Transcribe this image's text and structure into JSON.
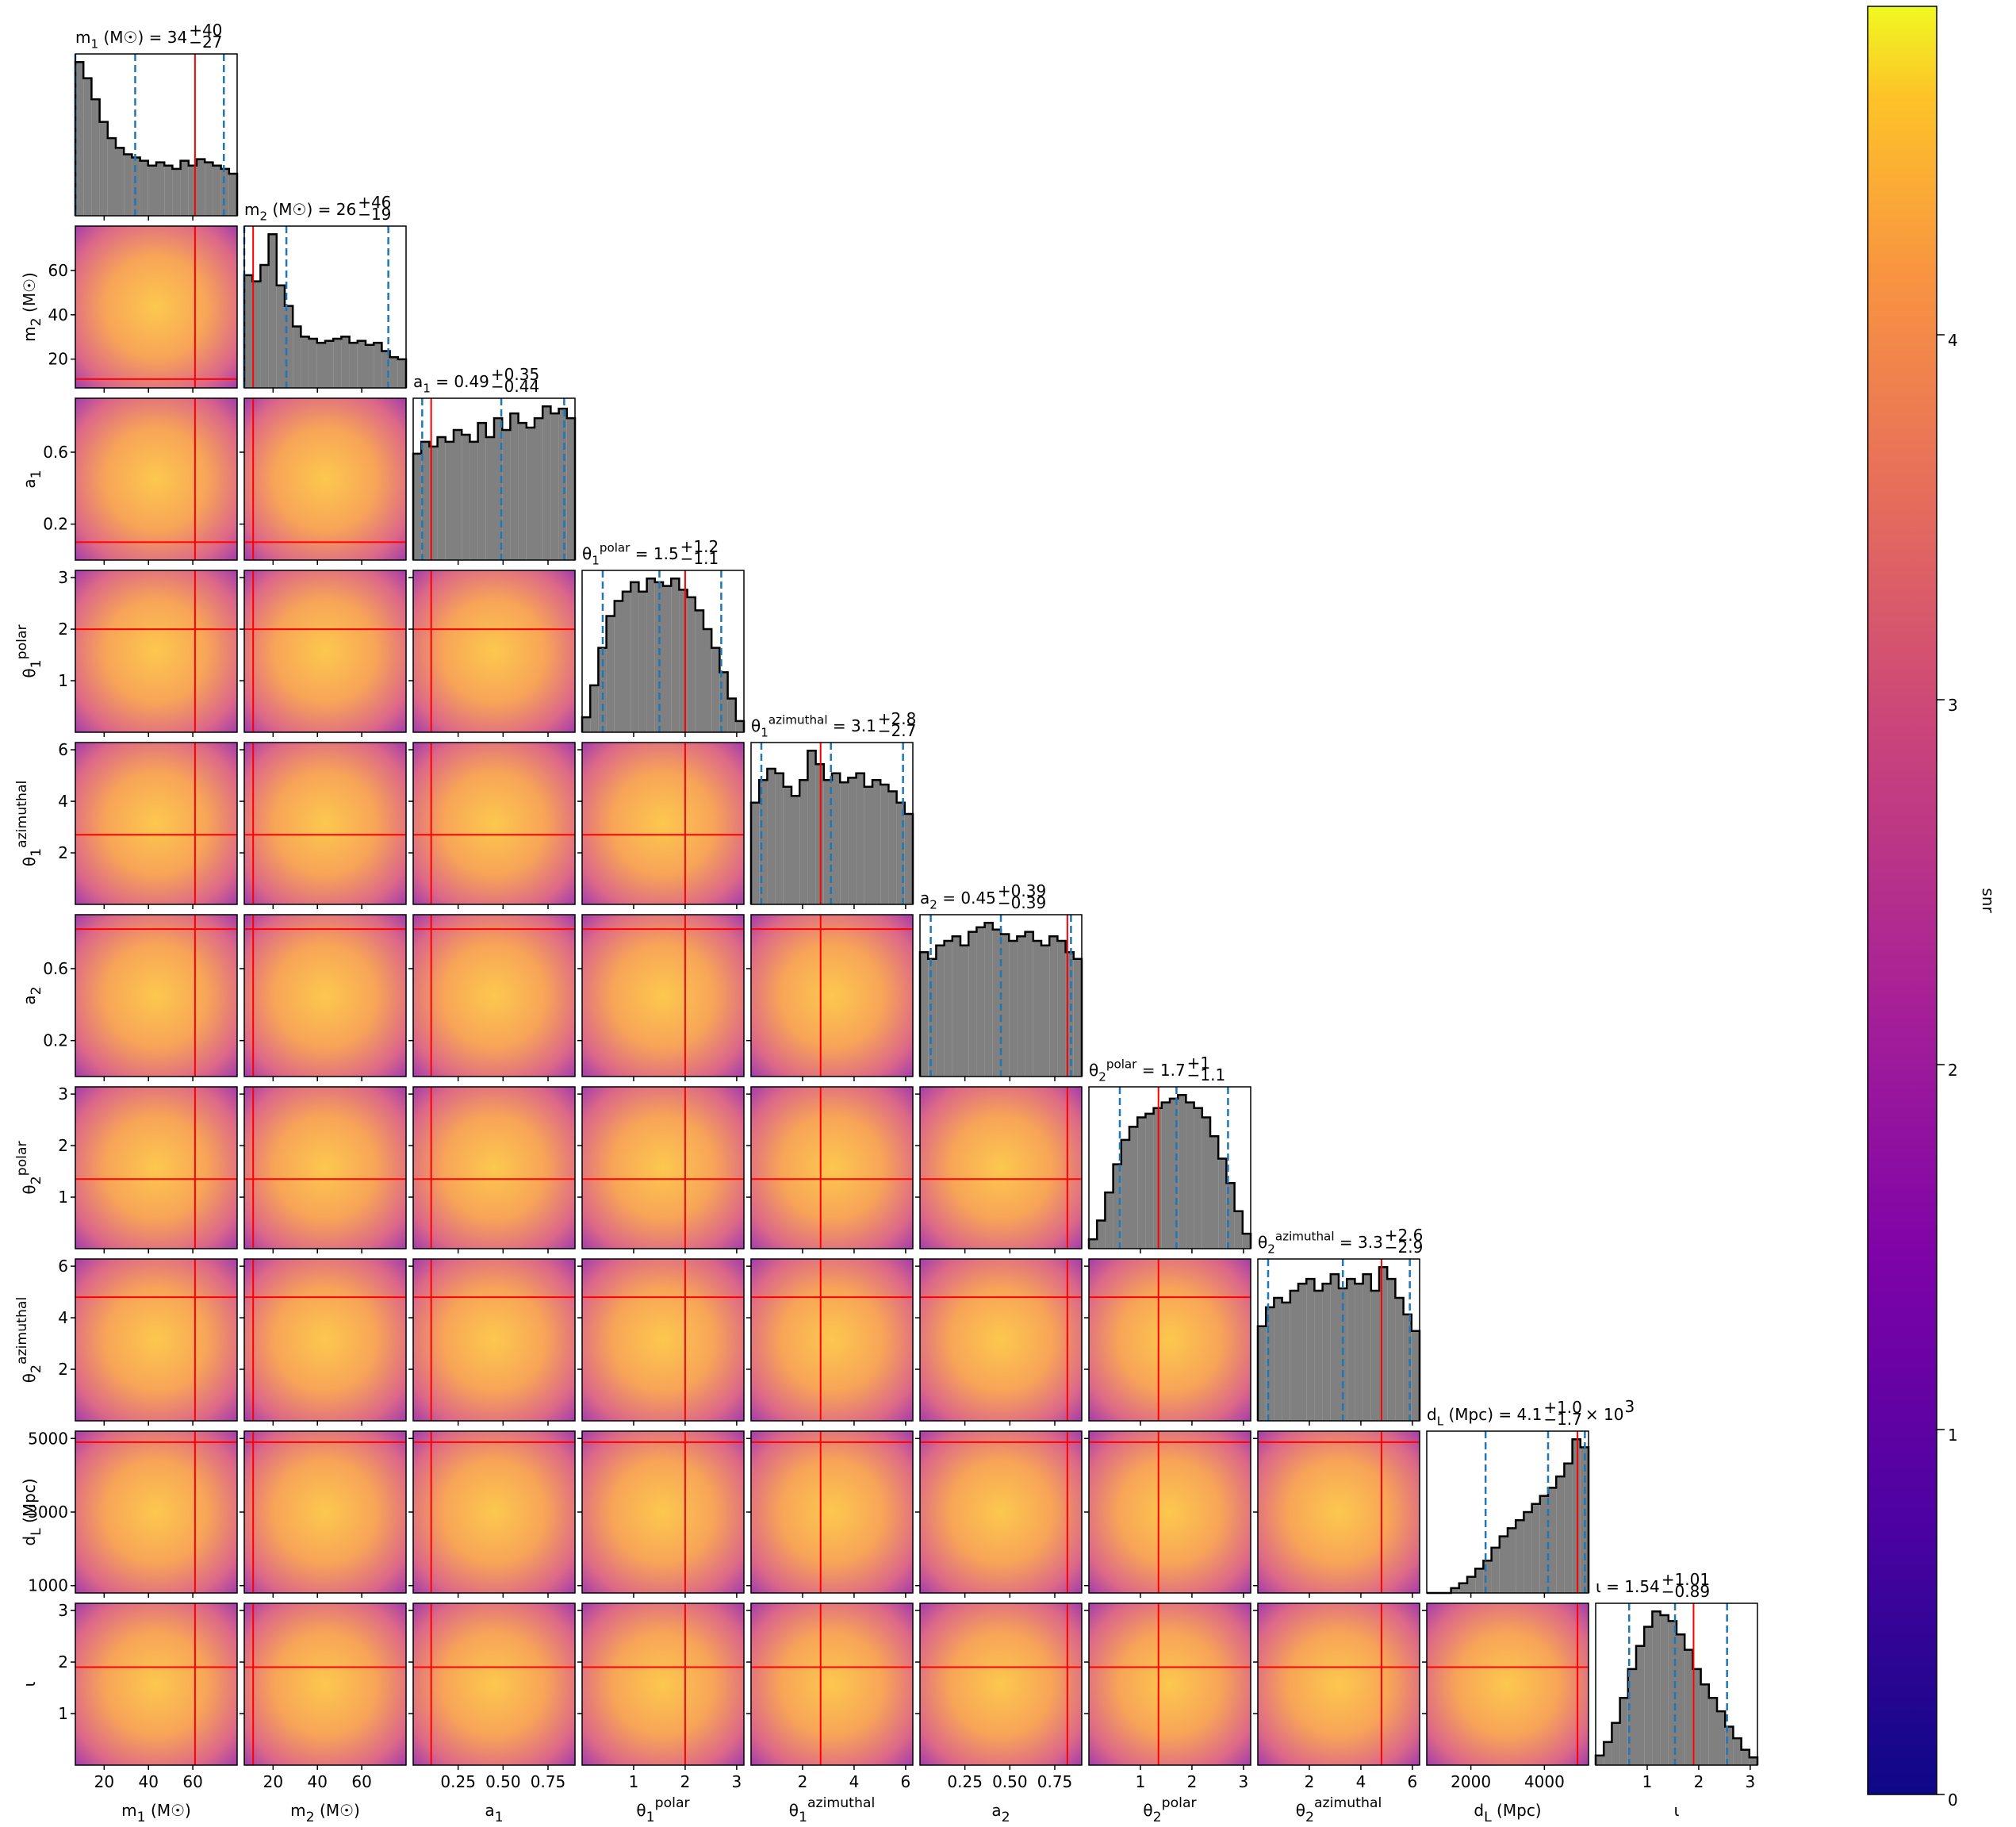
{
  "chart_data": {
    "type": "corner",
    "params": [
      {
        "label": {
          "lead": "m",
          "sub": "1",
          "rest": " (M☉)"
        },
        "title": {
          "lead": "m",
          "sub": "1",
          "rest": " (M☉) = 34",
          "plus": "+40",
          "minus": "−27"
        },
        "lim": [
          7,
          80
        ],
        "xticks": [
          20,
          40,
          60
        ],
        "truth": 61,
        "quantiles": [
          7,
          34,
          74
        ],
        "hist": [
          95,
          85,
          72,
          58,
          48,
          42,
          38,
          36,
          34,
          31,
          33,
          31,
          29,
          34,
          31,
          35,
          33,
          31,
          29,
          26
        ]
      },
      {
        "label": {
          "lead": "m",
          "sub": "2",
          "rest": " (M☉)"
        },
        "title": {
          "lead": "m",
          "sub": "2",
          "rest": " (M☉) = 26",
          "plus": "+46",
          "minus": "−19"
        },
        "lim": [
          7,
          80
        ],
        "xticks": [
          20,
          40,
          60
        ],
        "yticks": [
          20,
          40,
          60
        ],
        "truth": 11,
        "quantiles": [
          7,
          26,
          72
        ],
        "hist": [
          55,
          52,
          60,
          75,
          50,
          40,
          30,
          25,
          24,
          22,
          23,
          24,
          25,
          22,
          23,
          21,
          22,
          18,
          15,
          14
        ]
      },
      {
        "label": {
          "lead": "a",
          "sub": "1"
        },
        "title": {
          "lead": "a",
          "sub": "1",
          "rest": " = 0.49",
          "plus": "+0.35",
          "minus": "−0.44"
        },
        "lim": [
          0,
          0.9
        ],
        "xticks": [
          0.25,
          {
            "value": 0.5,
            "label": "0.50"
          },
          0.75
        ],
        "yticks": [
          0.2,
          0.6
        ],
        "truth": 0.1,
        "quantiles": [
          0.05,
          0.49,
          0.84
        ],
        "hist": [
          45,
          50,
          48,
          52,
          50,
          55,
          53,
          50,
          58,
          52,
          60,
          55,
          62,
          58,
          56,
          60,
          65,
          62,
          64,
          60
        ]
      },
      {
        "label": {
          "lead": "θ",
          "sub": "1",
          "sup": "polar"
        },
        "title": {
          "lead": "θ",
          "sub": "1",
          "sup": "polar",
          "rest": " = 1.5",
          "plus": "+1.2",
          "minus": "−1.1"
        },
        "lim": [
          0,
          3.14
        ],
        "xticks": [
          1,
          2,
          3
        ],
        "yticks": [
          1,
          2,
          3
        ],
        "truth": 2.0,
        "quantiles": [
          0.4,
          1.5,
          2.7
        ],
        "hist": [
          8,
          25,
          45,
          62,
          70,
          75,
          80,
          75,
          82,
          80,
          78,
          82,
          76,
          72,
          65,
          55,
          45,
          32,
          18,
          6
        ]
      },
      {
        "label": {
          "lead": "θ",
          "sub": "1",
          "sup": "azimuthal"
        },
        "title": {
          "lead": "θ",
          "sub": "1",
          "sup": "azimuthal",
          "rest": " = 3.1",
          "plus": "+2.8",
          "minus": "−2.7"
        },
        "lim": [
          0,
          6.28
        ],
        "xticks": [
          2,
          4,
          6
        ],
        "yticks": [
          2,
          4,
          6
        ],
        "truth": 2.7,
        "quantiles": [
          0.4,
          3.1,
          5.9
        ],
        "hist": [
          45,
          55,
          60,
          58,
          52,
          48,
          55,
          68,
          62,
          55,
          58,
          54,
          56,
          58,
          52,
          55,
          53,
          50,
          45,
          40
        ]
      },
      {
        "label": {
          "lead": "a",
          "sub": "2"
        },
        "title": {
          "lead": "a",
          "sub": "2",
          "rest": " = 0.45",
          "plus": "+0.39",
          "minus": "−0.39"
        },
        "lim": [
          0,
          0.9
        ],
        "xticks": [
          0.25,
          {
            "value": 0.5,
            "label": "0.50"
          },
          0.75
        ],
        "yticks": [
          0.2,
          0.6
        ],
        "truth": 0.82,
        "quantiles": [
          0.06,
          0.45,
          0.84
        ],
        "hist": [
          55,
          52,
          58,
          60,
          62,
          58,
          64,
          66,
          68,
          65,
          63,
          60,
          62,
          64,
          60,
          58,
          62,
          60,
          55,
          52
        ]
      },
      {
        "label": {
          "lead": "θ",
          "sub": "2",
          "sup": "polar"
        },
        "title": {
          "lead": "θ",
          "sub": "2",
          "sup": "polar",
          "rest": " = 1.7",
          "plus": "+1",
          "minus": "−1.1"
        },
        "lim": [
          0,
          3.14
        ],
        "xticks": [
          1,
          2,
          3
        ],
        "yticks": [
          1,
          2,
          3
        ],
        "truth": 1.35,
        "quantiles": [
          0.6,
          1.7,
          2.7
        ],
        "hist": [
          5,
          15,
          30,
          45,
          58,
          65,
          70,
          72,
          75,
          78,
          80,
          82,
          78,
          75,
          70,
          60,
          48,
          35,
          20,
          8
        ]
      },
      {
        "label": {
          "lead": "θ",
          "sub": "2",
          "sup": "azimuthal"
        },
        "title": {
          "lead": "θ",
          "sub": "2",
          "sup": "azimuthal",
          "rest": " = 3.3",
          "plus": "+2.6",
          "minus": "−2.9"
        },
        "lim": [
          0,
          6.28
        ],
        "xticks": [
          2,
          4,
          6
        ],
        "yticks": [
          2,
          4,
          6
        ],
        "truth": 4.8,
        "quantiles": [
          0.4,
          3.3,
          5.9
        ],
        "hist": [
          40,
          48,
          52,
          50,
          55,
          58,
          60,
          55,
          58,
          62,
          56,
          60,
          58,
          62,
          55,
          65,
          60,
          52,
          45,
          38
        ]
      },
      {
        "label": {
          "lead": "d",
          "sub": "L",
          "rest": " (Mpc)"
        },
        "title": {
          "lead": "d",
          "sub": "L",
          "rest": " (Mpc) = 4.1",
          "plus": "+1.0",
          "minus": "−1.7",
          "tail": "× 10",
          "tailsup": "3"
        },
        "lim": [
          800,
          5200
        ],
        "xticks": [
          2000,
          4000
        ],
        "yticks": [
          1000,
          3000,
          5000
        ],
        "truth": 4900,
        "quantiles": [
          2400,
          4100,
          5100
        ],
        "hist": [
          0,
          0,
          0,
          3,
          6,
          10,
          15,
          20,
          28,
          35,
          40,
          45,
          50,
          55,
          60,
          65,
          72,
          80,
          95,
          90
        ]
      },
      {
        "label": {
          "lead": "ι"
        },
        "title": {
          "lead": "ι",
          "rest": " = 1.54",
          "plus": "+1.01",
          "minus": "−0.89"
        },
        "lim": [
          0,
          3.14
        ],
        "xticks": [
          1,
          2,
          3
        ],
        "yticks": [
          1,
          2,
          3
        ],
        "truth": 1.9,
        "quantiles": [
          0.65,
          1.54,
          2.55
        ],
        "hist": [
          5,
          12,
          22,
          35,
          50,
          62,
          72,
          80,
          78,
          75,
          68,
          60,
          50,
          42,
          35,
          28,
          20,
          14,
          8,
          4
        ]
      }
    ],
    "hist_color": "#808080",
    "quantile_color": "#1f77b4",
    "truth_color": "#ff0000",
    "colorbar": {
      "label": "snr",
      "lim": [
        0,
        4.9
      ],
      "ticks": [
        0,
        1,
        2,
        3,
        4
      ]
    }
  }
}
